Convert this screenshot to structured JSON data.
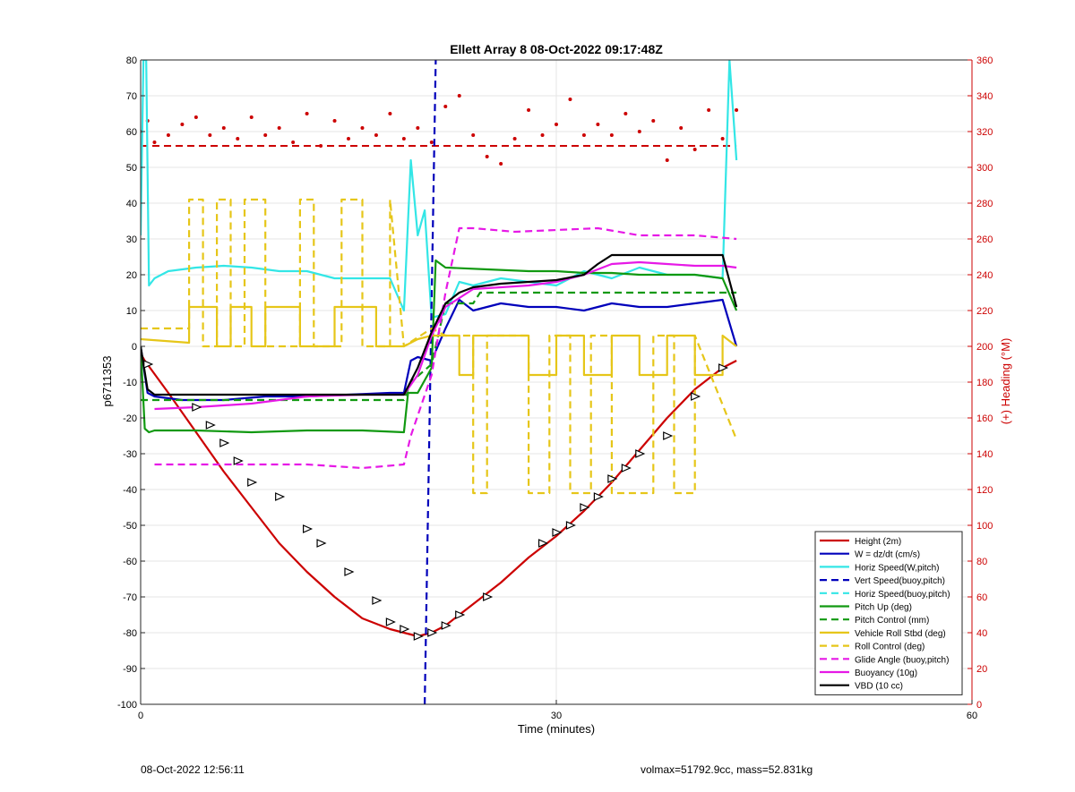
{
  "footer": {
    "left": "08-Oct-2022 12:56:11",
    "right": "volmax=51792.9cc, mass=52.831kg"
  },
  "chart_data": {
    "type": "line",
    "title": "Ellett Array 8 08-Oct-2022 09:17:48Z",
    "xlabel": "Time (minutes)",
    "ylabel": "p6711353",
    "y2label": "(+) Heading (°M)",
    "xlim": [
      0,
      60
    ],
    "ylim": [
      -100,
      80
    ],
    "y2lim": [
      0,
      360
    ],
    "xticks": [
      0,
      30,
      60
    ],
    "yticks": [
      -100,
      -90,
      -80,
      -70,
      -60,
      -50,
      -40,
      -30,
      -20,
      -10,
      0,
      10,
      20,
      30,
      40,
      50,
      60,
      70,
      80
    ],
    "y2ticks": [
      0,
      20,
      40,
      60,
      80,
      100,
      120,
      140,
      160,
      180,
      200,
      220,
      240,
      260,
      280,
      300,
      320,
      340,
      360
    ],
    "grid": true,
    "legend_position": "bottom-right",
    "colors": {
      "red": "#cc0000",
      "blue": "#0000bb",
      "cyan": "#33e6e6",
      "green": "#119911",
      "yellow": "#e6c619",
      "magenta": "#e619e6",
      "black": "#000000",
      "axis2": "#cc0000"
    },
    "series": [
      {
        "name": "Height (2m)",
        "color": "#cc0000",
        "style": "solid",
        "x": [
          0,
          0.3,
          2,
          4,
          6,
          8,
          10,
          12,
          14,
          16,
          18,
          19,
          20,
          21,
          22,
          24,
          26,
          28,
          30,
          32,
          34,
          36,
          38,
          40,
          42,
          43
        ],
        "y": [
          -2,
          -4,
          -13,
          -24,
          -35,
          -45,
          -55,
          -63,
          -70,
          -76,
          -79,
          -80,
          -81,
          -80,
          -78,
          -72,
          -66,
          -59,
          -53,
          -46,
          -38,
          -29,
          -20,
          -12,
          -6,
          -4
        ]
      },
      {
        "name": "W = dz/dt (cm/s)",
        "color": "#0000bb",
        "style": "solid",
        "x": [
          0,
          0.5,
          1,
          3,
          6,
          9,
          12,
          15,
          18,
          19,
          19.5,
          20,
          21,
          22,
          23,
          24,
          26,
          28,
          30,
          32,
          34,
          36,
          38,
          40,
          42,
          43
        ],
        "y": [
          0,
          -13,
          -14,
          -15,
          -15,
          -14,
          -14,
          -13.5,
          -13,
          -13,
          -4,
          -3,
          -4,
          5,
          13,
          10,
          12,
          11,
          11,
          10,
          12,
          11,
          11,
          12,
          13,
          0
        ]
      },
      {
        "name": "Horiz Speed(W,pitch)",
        "color": "#33e6e6",
        "style": "solid",
        "x": [
          0,
          0.2,
          0.4,
          0.6,
          1,
          2,
          4,
          6,
          8,
          10,
          12,
          14,
          16,
          18,
          19,
          19.5,
          20,
          20.5,
          21,
          22,
          23,
          24,
          26,
          28,
          30,
          32,
          34,
          36,
          38,
          40,
          42,
          42.5,
          43
        ],
        "y": [
          31,
          80,
          80,
          17,
          19,
          21,
          22,
          22.5,
          22,
          21,
          21,
          19,
          19,
          19,
          10,
          52,
          31,
          38,
          8,
          9,
          18,
          17,
          19,
          18,
          17,
          21,
          19,
          22,
          20,
          20,
          19,
          80,
          52
        ]
      },
      {
        "name": "Vert Speed(buoy,pitch)",
        "color": "#0000bb",
        "style": "dashed",
        "x": [
          20.5,
          21.3
        ],
        "y": [
          -100,
          80
        ]
      },
      {
        "name": "Horiz Speed(buoy,pitch)",
        "color": "#33e6e6",
        "style": "dashed",
        "x": [],
        "y": []
      },
      {
        "name": "Pitch Up (deg)",
        "color": "#119911",
        "style": "solid",
        "x": [
          0,
          0.3,
          0.6,
          1,
          4,
          8,
          12,
          16,
          19,
          19.3,
          20,
          21,
          21.3,
          22,
          25,
          28,
          30,
          32,
          34,
          36,
          38,
          40,
          42,
          43
        ],
        "y": [
          0,
          -23,
          -24,
          -23.5,
          -23.5,
          -24,
          -23.5,
          -23.5,
          -24,
          -13,
          -13,
          -6,
          24,
          22,
          21.5,
          21,
          21,
          20.5,
          20.5,
          20,
          20,
          20,
          19,
          10
        ]
      },
      {
        "name": "Pitch Control (mm)",
        "color": "#119911",
        "style": "dashed",
        "x": [
          0,
          19,
          19.5,
          21,
          22,
          24,
          24.5,
          43
        ],
        "y": [
          -15,
          -15,
          -10,
          -5,
          12,
          12,
          15,
          15
        ]
      },
      {
        "name": "Vehicle Roll Stbd (deg)",
        "color": "#e6c619",
        "style": "solid",
        "x": [
          0,
          3.5,
          3.5,
          5.5,
          5.5,
          6.5,
          6.5,
          8,
          8,
          9,
          9,
          11.5,
          11.5,
          14,
          14,
          17,
          17,
          19,
          20,
          21,
          21.5,
          23,
          23,
          24,
          24,
          28,
          28,
          30,
          30,
          32,
          32,
          34,
          34,
          36,
          36,
          38,
          38,
          40,
          40,
          42,
          42,
          43
        ],
        "y": [
          2,
          1,
          11,
          11,
          0,
          0,
          11,
          11,
          0,
          0,
          11,
          11,
          0,
          0,
          11,
          11,
          0,
          0,
          2,
          3,
          3,
          3,
          -8,
          -8,
          3,
          3,
          -8,
          -8,
          3,
          3,
          -8,
          -8,
          3,
          3,
          -8,
          -8,
          3,
          3,
          -8,
          -8,
          3,
          0
        ]
      },
      {
        "name": "Roll Control (deg)",
        "color": "#e6c619",
        "style": "dashed",
        "x": [
          0,
          3.5,
          3.5,
          4.5,
          4.5,
          5.5,
          5.5,
          6.5,
          6.5,
          7.5,
          7.5,
          9,
          9,
          11.5,
          11.5,
          12.5,
          12.5,
          14.5,
          14.5,
          16,
          16,
          18,
          18,
          19,
          21,
          22,
          24,
          24,
          25,
          25,
          28,
          28,
          29.5,
          29.5,
          31,
          31,
          32.5,
          32.5,
          34,
          34,
          37,
          37,
          38.5,
          38.5,
          40,
          40,
          43
        ],
        "y": [
          5,
          5,
          41,
          41,
          0,
          0,
          41,
          41,
          0,
          0,
          41,
          41,
          0,
          0,
          41,
          41,
          0,
          0,
          41,
          41,
          0,
          0,
          41,
          0,
          5,
          3,
          3,
          -41,
          -41,
          3,
          3,
          -41,
          -41,
          3,
          3,
          -41,
          -41,
          3,
          3,
          -41,
          -41,
          3,
          3,
          -41,
          -41,
          3,
          -26
        ]
      },
      {
        "name": "Glide Angle (buoy,pitch)",
        "color": "#e619e6",
        "style": "dashed",
        "x": [
          1,
          4,
          8,
          12,
          16,
          19,
          19.5,
          21,
          22,
          23,
          24,
          27,
          30,
          33,
          36,
          40,
          43
        ],
        "y": [
          -33,
          -33,
          -33,
          -33,
          -34,
          -33,
          -25,
          -8,
          15,
          33,
          33,
          32,
          32.5,
          33,
          31,
          31,
          30
        ]
      },
      {
        "name": "Buoyancy (10g)",
        "color": "#e619e6",
        "style": "solid",
        "x": [
          1,
          4,
          8,
          10,
          12,
          16,
          19,
          20,
          21,
          22,
          24,
          28,
          30,
          32,
          34,
          36,
          38,
          40,
          42,
          43
        ],
        "y": [
          -17.5,
          -17,
          -16,
          -15,
          -14,
          -13.5,
          -13.5,
          -8,
          3,
          11,
          16,
          17,
          18,
          20,
          23,
          23.5,
          23,
          22.5,
          22.5,
          22
        ]
      },
      {
        "name": "VBD (10 cc)",
        "color": "#000000",
        "style": "solid",
        "x": [
          0,
          0.5,
          1,
          4,
          8,
          12,
          16,
          19,
          20,
          21,
          22,
          23,
          24,
          26,
          28,
          30,
          32,
          33,
          34,
          36,
          38,
          40,
          42,
          43
        ],
        "y": [
          0,
          -12,
          -13.5,
          -13.5,
          -13.5,
          -13.5,
          -13.5,
          -13.5,
          -6,
          4,
          12,
          15,
          16.5,
          17.5,
          18,
          18.5,
          20,
          23,
          25.5,
          25.5,
          25.5,
          25.5,
          25.5,
          11
        ]
      }
    ],
    "heading_series": {
      "name": "Heading",
      "axis": "right",
      "color": "#cc0000",
      "style": "dotted",
      "x": [
        0,
        0.5,
        1,
        2,
        3,
        4,
        5,
        6,
        7,
        8,
        9,
        10,
        11,
        12,
        13,
        14,
        15,
        16,
        17,
        18,
        19,
        20,
        21,
        22,
        23,
        24,
        25,
        26,
        27,
        28,
        29,
        30,
        31,
        32,
        33,
        34,
        35,
        36,
        37,
        38,
        39,
        40,
        41,
        42,
        43
      ],
      "y": [
        320,
        326,
        314,
        318,
        324,
        328,
        318,
        322,
        316,
        328,
        318,
        322,
        314,
        330,
        312,
        326,
        316,
        322,
        318,
        330,
        316,
        322,
        314,
        334,
        340,
        318,
        306,
        302,
        316,
        332,
        318,
        324,
        338,
        318,
        324,
        318,
        330,
        320,
        326,
        304,
        322,
        310,
        332,
        316,
        332
      ]
    },
    "heading_reference": {
      "axis": "right",
      "value": 312,
      "color": "#cc0000",
      "style": "dashed",
      "x": [
        0,
        43
      ]
    },
    "markers": {
      "color": "#000000",
      "shape": "triangle",
      "x": [
        0.5,
        4,
        5,
        6,
        7,
        8,
        10,
        12,
        13,
        15,
        17,
        18,
        19,
        20,
        21,
        22,
        23,
        25,
        29,
        30,
        31,
        32,
        33,
        34,
        35,
        36,
        38,
        40,
        42
      ],
      "y": [
        -5,
        -17,
        -22,
        -27,
        -32,
        -38,
        -42,
        -51,
        -55,
        -63,
        -71,
        -77,
        -79,
        -81,
        -80,
        -78,
        -75,
        -70,
        -55,
        -52,
        -50,
        -45,
        -42,
        -37,
        -34,
        -30,
        -25,
        -14,
        -6
      ]
    }
  }
}
